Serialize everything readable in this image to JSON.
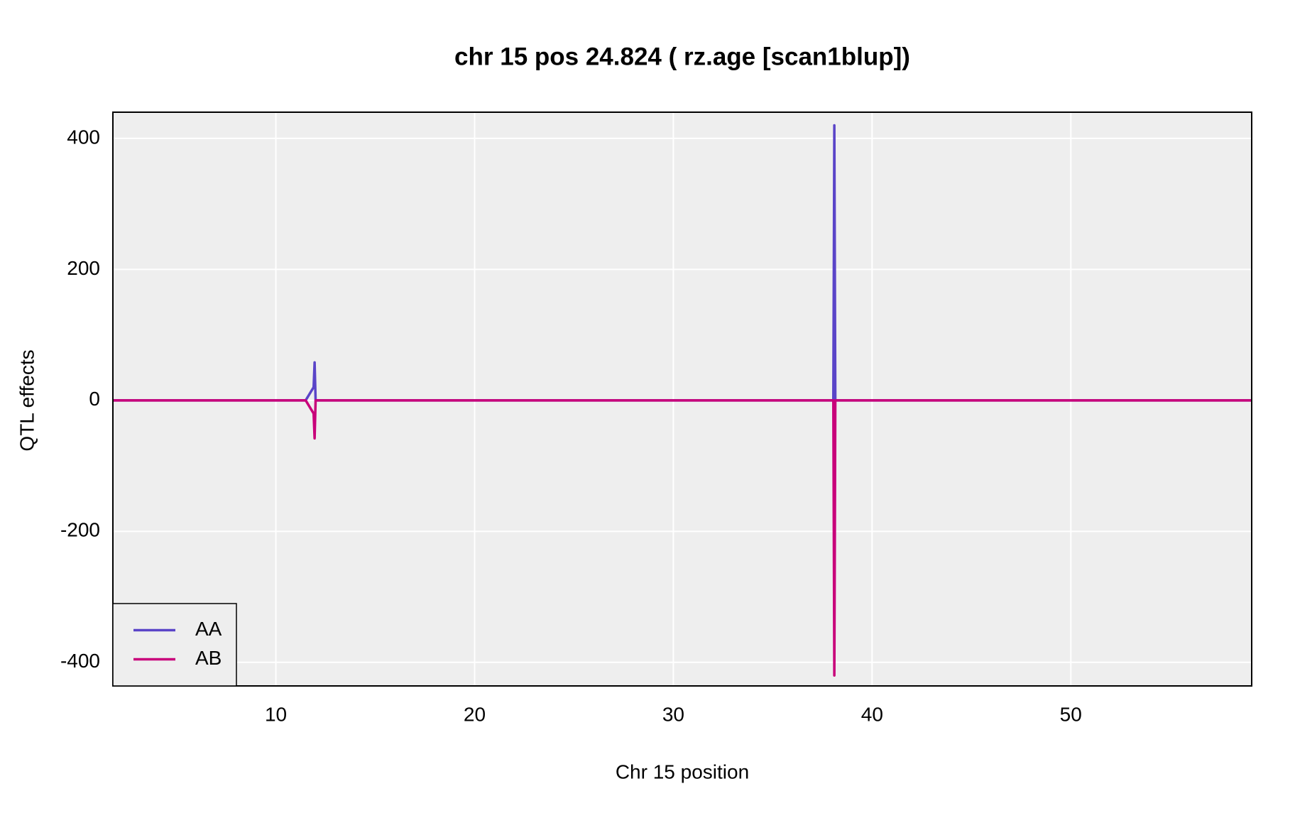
{
  "chart_data": {
    "type": "line",
    "title": "chr 15 pos 24.824 ( rz.age  [scan1blup])",
    "x_label": "Chr 15 position",
    "y_label": "QTL effects",
    "x": [
      1.8,
      3,
      7.5,
      8.3,
      11.5,
      11.9,
      11.95,
      12.0,
      12.5,
      15.5,
      17,
      18.7,
      23.3,
      25.9,
      28.8,
      38.05,
      38.1,
      38.15,
      59.1
    ],
    "series": [
      {
        "name": "AA",
        "color": "#5a44c8",
        "values": [
          0,
          0,
          0,
          0,
          0,
          20,
          58,
          0,
          0,
          0,
          0,
          0,
          0,
          0,
          0,
          0,
          420,
          0,
          0
        ]
      },
      {
        "name": "AB",
        "color": "#c8007a",
        "values": [
          0,
          0,
          0,
          0,
          0,
          -20,
          -58,
          0,
          0,
          0,
          0,
          0,
          0,
          0,
          0,
          0,
          -420,
          0,
          0
        ]
      }
    ],
    "xlim": [
      1.8,
      59.1
    ],
    "xticks": [
      10,
      20,
      30,
      40,
      50
    ],
    "ylim": [
      -436,
      440
    ],
    "yticks": [
      -400,
      -200,
      0,
      200,
      400
    ],
    "grid": true,
    "legend": "bottomleft"
  }
}
